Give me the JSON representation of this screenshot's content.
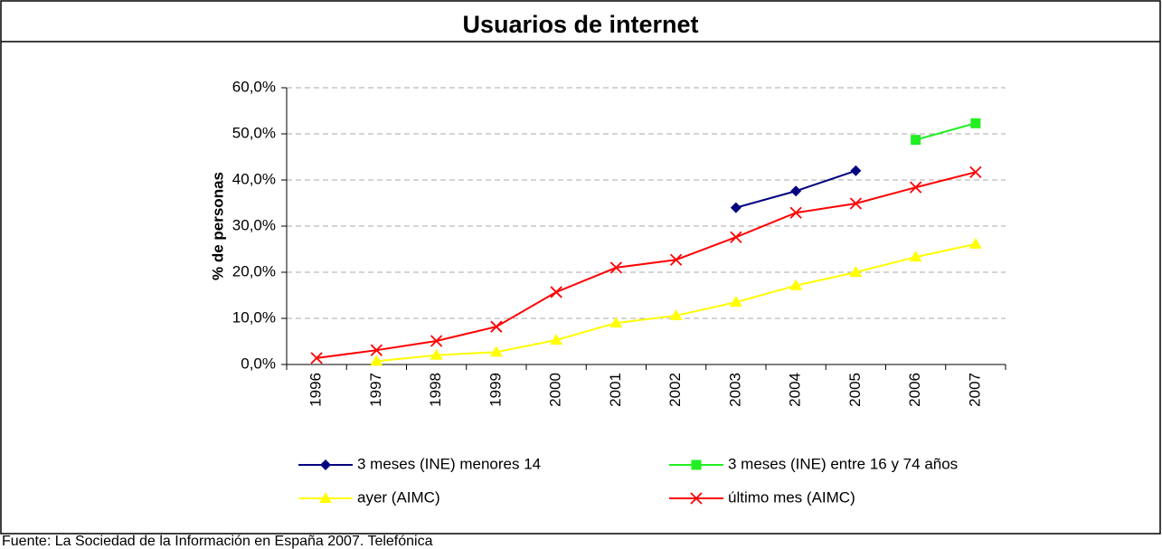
{
  "chart_data": {
    "type": "line",
    "title": "Usuarios de internet",
    "y_label": "% de personas",
    "footer": "Fuente: La Sociedad de la Información en España 2007. Telefónica",
    "categories": [
      "1996",
      "1997",
      "1998",
      "1999",
      "2000",
      "2001",
      "2002",
      "2003",
      "2004",
      "2005",
      "2006",
      "2007"
    ],
    "series": [
      {
        "name": "3 meses (INE) menores 14",
        "color": "#000080",
        "marker": "diamond",
        "values": [
          null,
          null,
          null,
          null,
          null,
          null,
          null,
          34.0,
          37.6,
          42.0,
          null,
          null
        ]
      },
      {
        "name": "3 meses (INE) entre 16 y 74 años",
        "color": "#22ee22",
        "marker": "square",
        "values": [
          null,
          null,
          null,
          null,
          null,
          null,
          null,
          null,
          null,
          null,
          48.7,
          52.3
        ]
      },
      {
        "name": "ayer (AIMC)",
        "color": "#ffff00",
        "marker": "triangle",
        "values": [
          null,
          0.7,
          2.0,
          2.7,
          5.3,
          9.0,
          10.6,
          13.5,
          17.1,
          20.0,
          23.3,
          26.1
        ]
      },
      {
        "name": "último mes (AIMC)",
        "color": "#ff0000",
        "marker": "x",
        "values": [
          1.4,
          3.1,
          5.1,
          8.2,
          15.7,
          21.0,
          22.7,
          27.6,
          32.9,
          34.9,
          38.4,
          41.7
        ]
      }
    ],
    "ylim": [
      0,
      60
    ],
    "yticks": [
      {
        "value": 0,
        "label": "0,0%"
      },
      {
        "value": 10,
        "label": "10,0%"
      },
      {
        "value": 20,
        "label": "20,0%"
      },
      {
        "value": 30,
        "label": "30,0%"
      },
      {
        "value": 40,
        "label": "40,0%"
      },
      {
        "value": 50,
        "label": "50,0%"
      },
      {
        "value": 60,
        "label": "60,0%"
      }
    ],
    "grid": true,
    "legend": "bottom"
  }
}
